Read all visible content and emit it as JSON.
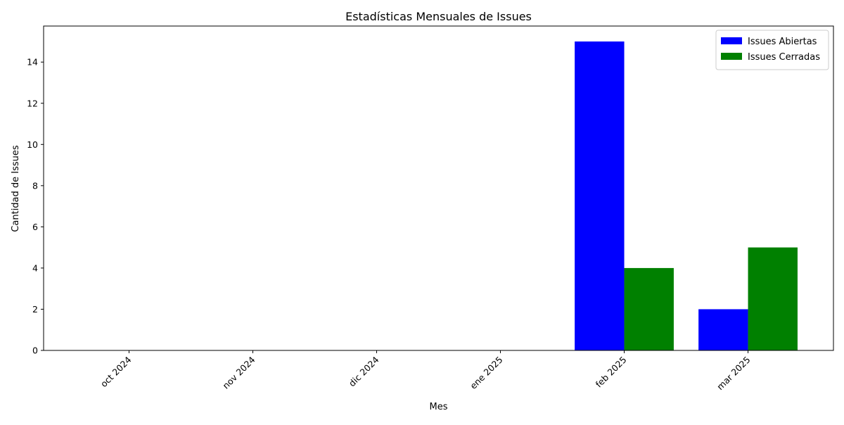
{
  "chart_data": {
    "type": "bar",
    "title": "Estadísticas Mensuales de Issues",
    "xlabel": "Mes",
    "ylabel": "Cantidad de Issues",
    "categories": [
      "oct 2024",
      "nov 2024",
      "dic 2024",
      "ene 2025",
      "feb 2025",
      "mar 2025"
    ],
    "series": [
      {
        "name": "Issues Abiertas",
        "color": "#0000ff",
        "values": [
          0,
          0,
          0,
          0,
          15,
          2
        ]
      },
      {
        "name": "Issues Cerradas",
        "color": "#008000",
        "values": [
          0,
          0,
          0,
          0,
          4,
          5
        ]
      }
    ],
    "ylim": [
      0,
      15.75
    ],
    "yticks": [
      0,
      2,
      4,
      6,
      8,
      10,
      12,
      14
    ],
    "grid": false,
    "legend_position": "top-right"
  }
}
